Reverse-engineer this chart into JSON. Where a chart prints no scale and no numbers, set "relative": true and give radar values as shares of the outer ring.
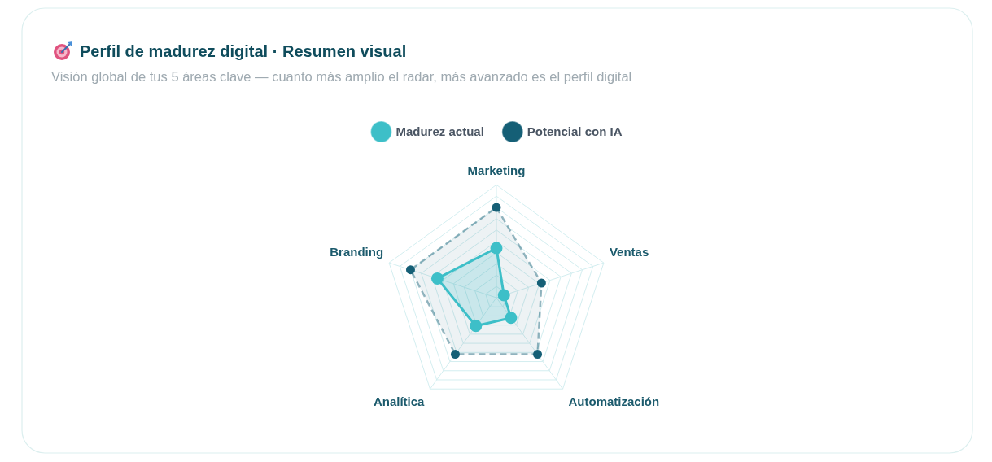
{
  "chart_data": {
    "type": "radar",
    "title": "Perfil de madurez digital · Resumen visual",
    "subtitle": "Visión global de tus 5 áreas clave — cuanto más amplio el radar, más avanzado es el perfil digital",
    "categories": [
      "Marketing",
      "Ventas",
      "Automatización",
      "Analítica",
      "Branding"
    ],
    "series": [
      {
        "name": "Madurez actual",
        "color": "#3dbfc8",
        "values": [
          0.44,
          0.07,
          0.22,
          0.31,
          0.55
        ],
        "line_style": "solid"
      },
      {
        "name": "Potencial con IA",
        "color": "#155f76",
        "values": [
          0.8,
          0.42,
          0.62,
          0.62,
          0.8
        ],
        "line_style": "dashed"
      }
    ],
    "relative": true,
    "grid": true,
    "legend": "top",
    "marker": "circle"
  }
}
